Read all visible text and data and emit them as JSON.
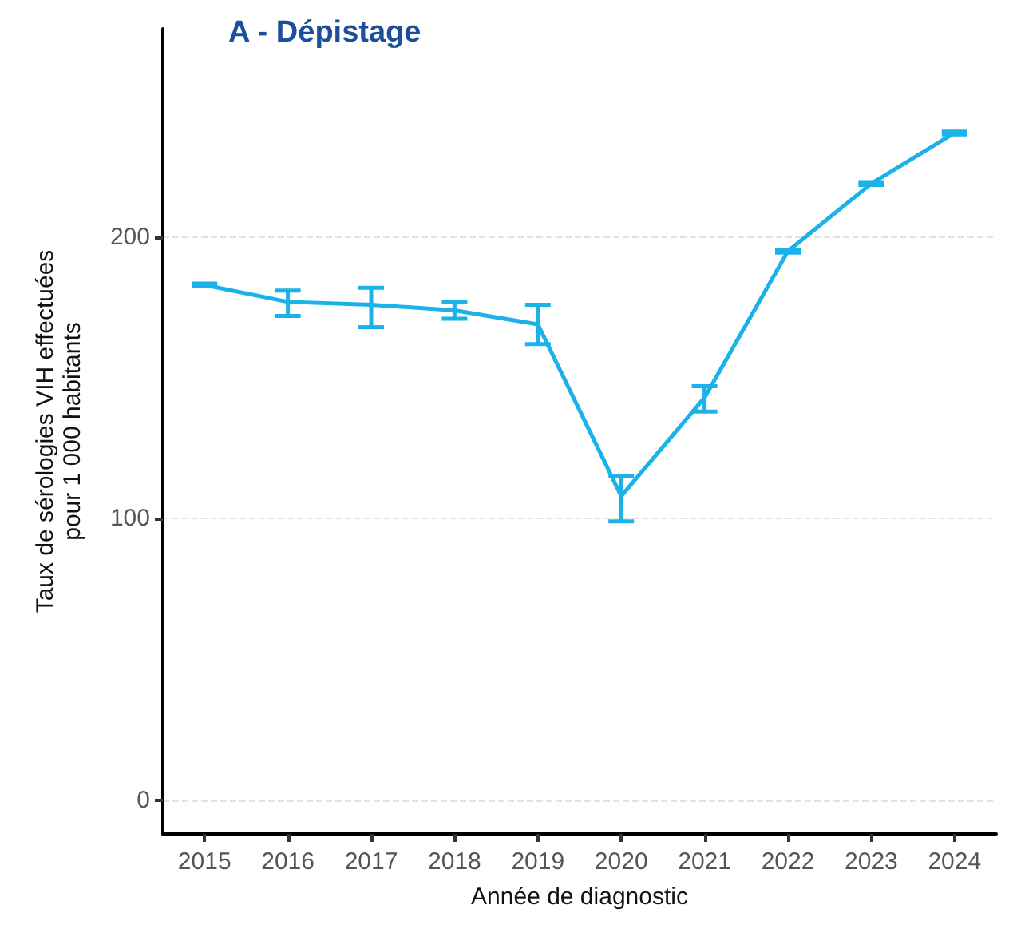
{
  "chart_data": {
    "type": "line",
    "title": "A - Dépistage",
    "xlabel": "Année de diagnostic",
    "ylabel": "Taux de sérologies VIH effectuées\npour 1 000 habitants",
    "categories": [
      "2015",
      "2016",
      "2017",
      "2018",
      "2019",
      "2020",
      "2021",
      "2022",
      "2023",
      "2024"
    ],
    "series": [
      {
        "color": "#1ab2e8",
        "values": [
          183,
          177,
          176,
          174,
          169,
          108,
          143,
          195,
          219,
          237
        ],
        "errors": [
          0.5,
          [
            172,
            181
          ],
          [
            168,
            182
          ],
          [
            171,
            177
          ],
          [
            162,
            176
          ],
          [
            99,
            115
          ],
          [
            138,
            147
          ],
          0.5,
          0.5,
          0.5
        ]
      }
    ],
    "ylim": [
      -12,
      274
    ],
    "yticks": [
      0,
      100,
      200
    ],
    "grid": "y",
    "marker": "none",
    "line_style": "solid"
  }
}
